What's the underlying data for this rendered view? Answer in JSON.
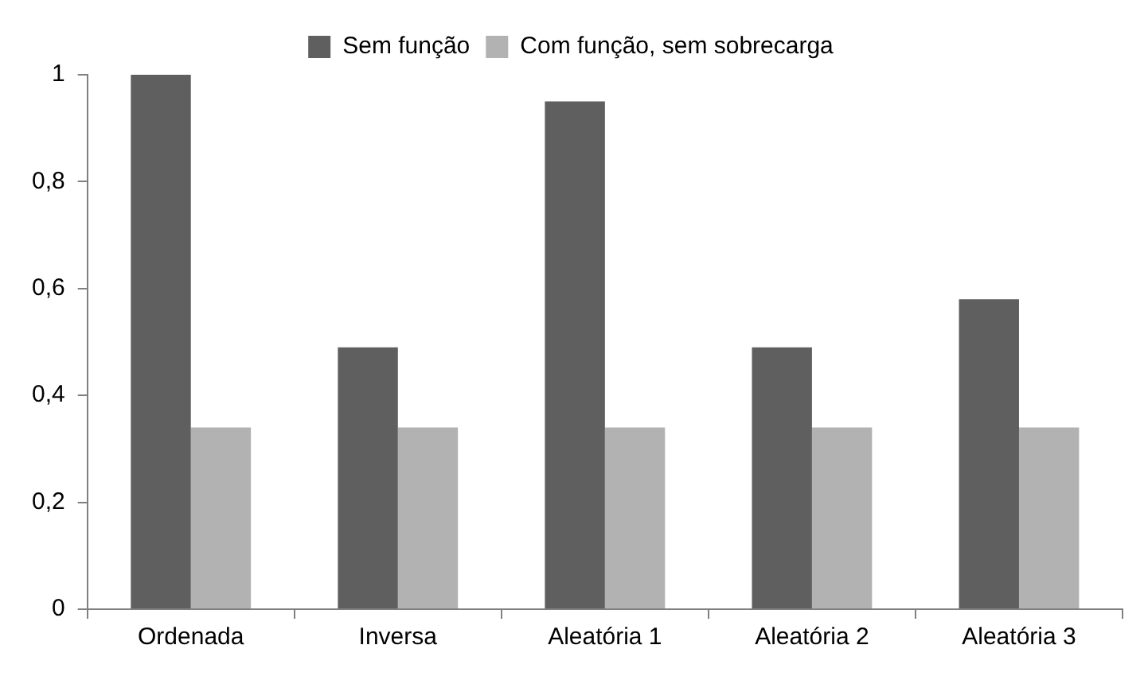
{
  "chart_data": {
    "type": "bar",
    "categories": [
      "Ordenada",
      "Inversa",
      "Aleatória 1",
      "Aleatória 2",
      "Aleatória 3"
    ],
    "series": [
      {
        "name": "Sem função",
        "color": "#5f5f5f",
        "values": [
          1,
          0.49,
          0.95,
          0.49,
          0.58
        ]
      },
      {
        "name": "Com função, sem sobrecarga",
        "color": "#b2b2b2",
        "values": [
          0.34,
          0.34,
          0.34,
          0.34,
          0.34
        ]
      }
    ],
    "ylim": [
      0,
      1
    ],
    "yticks": [
      0,
      {
        "value": 0.2,
        "label": "0,2"
      },
      {
        "value": 0.4,
        "label": "0,4"
      },
      {
        "value": 0.6,
        "label": "0,6"
      },
      {
        "value": 0.8,
        "label": "0,8"
      },
      1
    ],
    "grid": false,
    "legend": "top"
  }
}
